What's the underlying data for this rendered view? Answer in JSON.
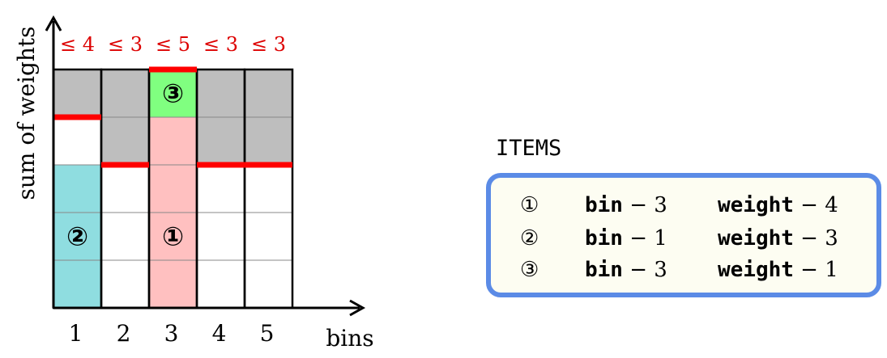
{
  "axes": {
    "y_label": "sum of weights",
    "x_label": "bins"
  },
  "bins": [
    {
      "label": "1",
      "capacity_label": "≤ 4",
      "capacity": 4
    },
    {
      "label": "2",
      "capacity_label": "≤ 3",
      "capacity": 3
    },
    {
      "label": "3",
      "capacity_label": "≤ 5",
      "capacity": 5
    },
    {
      "label": "4",
      "capacity_label": "≤ 3",
      "capacity": 3
    },
    {
      "label": "5",
      "capacity_label": "≤ 3",
      "capacity": 3
    }
  ],
  "total_height": 5,
  "placed_items": [
    {
      "id_label": "②",
      "bin": 1,
      "start": 0,
      "weight": 3,
      "color": "#8fdde0"
    },
    {
      "id_label": "①",
      "bin": 3,
      "start": 0,
      "weight": 4,
      "color": "#ffc0c0"
    },
    {
      "id_label": "③",
      "bin": 3,
      "start": 4,
      "weight": 1,
      "color": "#80ff80"
    }
  ],
  "colors": {
    "unused": "#bebebe",
    "capacity_line": "#ff0000",
    "capacity_text": "#dd0000",
    "panel_border": "#5b8be6",
    "panel_background": "#fdfdf2"
  },
  "items_panel": {
    "title": "ITEMS",
    "rows": [
      {
        "id": "①",
        "bin_key": "bin",
        "bin_op": " − ",
        "bin_value": "3",
        "weight_key": "weight",
        "weight_op": " − ",
        "weight_value": "4"
      },
      {
        "id": "②",
        "bin_key": "bin",
        "bin_op": " − ",
        "bin_value": "1",
        "weight_key": "weight",
        "weight_op": " − ",
        "weight_value": "3"
      },
      {
        "id": "③",
        "bin_key": "bin",
        "bin_op": " − ",
        "bin_value": "3",
        "weight_key": "weight",
        "weight_op": " − ",
        "weight_value": "1"
      }
    ]
  }
}
